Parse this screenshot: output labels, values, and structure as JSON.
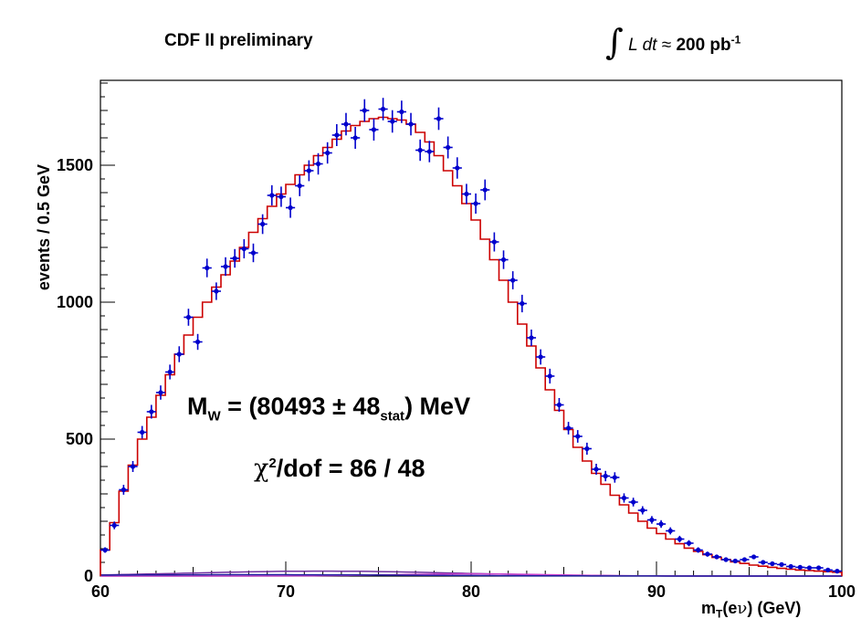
{
  "header": {
    "left": "CDF II preliminary",
    "lumi_integrand": "L dt",
    "lumi_approx": "≈",
    "lumi_value": "200 pb",
    "lumi_exp": "-1"
  },
  "annotations": {
    "mass_prefix": "M",
    "mass_sub": "W",
    "mass_eq": " = (80493 ± 48",
    "mass_stat": "stat",
    "mass_unit": ") MeV",
    "chi_symbol": "χ",
    "chi_exp": "2",
    "chi_rest": "/dof = 86 / 48"
  },
  "axes": {
    "ylabel": "events / 0.5 GeV",
    "xlabel_m": "m",
    "xlabel_sub": "T",
    "xlabel_open": "(e",
    "xlabel_nu": "ν",
    "xlabel_close": ") (GeV)"
  },
  "colors": {
    "data": "#0000cc",
    "fit": "#cc0000",
    "background_1": "#7030a0",
    "background_2": "#cc44cc",
    "background_3": "#2020a0"
  },
  "chart_data": {
    "type": "histogram",
    "xlim": [
      60,
      100
    ],
    "ylim": [
      0,
      1700
    ],
    "x_ticks": [
      60,
      70,
      80,
      90,
      100
    ],
    "y_ticks": [
      0,
      500,
      1000,
      1500
    ],
    "bin_width": 0.5,
    "series": [
      {
        "kind": "data points with error bars",
        "x": [
          60.25,
          60.75,
          61.25,
          61.75,
          62.25,
          62.75,
          63.25,
          63.75,
          64.25,
          64.75,
          65.25,
          65.75,
          66.25,
          66.75,
          67.25,
          67.75,
          68.25,
          68.75,
          69.25,
          69.75,
          70.25,
          70.75,
          71.25,
          71.75,
          72.25,
          72.75,
          73.25,
          73.75,
          74.25,
          74.75,
          75.25,
          75.75,
          76.25,
          76.75,
          77.25,
          77.75,
          78.25,
          78.75,
          79.25,
          79.75,
          80.25,
          80.75,
          81.25,
          81.75,
          82.25,
          82.75,
          83.25,
          83.75,
          84.25,
          84.75,
          85.25,
          85.75,
          86.25,
          86.75,
          87.25,
          87.75,
          88.25,
          88.75,
          89.25,
          89.75,
          90.25,
          90.75,
          91.25,
          91.75,
          92.25,
          92.75,
          93.25,
          93.75,
          94.25,
          94.75,
          95.25,
          95.75,
          96.25,
          96.75,
          97.25,
          97.75,
          98.25,
          98.75,
          99.25,
          99.75
        ],
        "y": [
          95,
          185,
          315,
          400,
          525,
          600,
          670,
          745,
          810,
          945,
          855,
          1125,
          1040,
          1130,
          1160,
          1195,
          1180,
          1285,
          1390,
          1385,
          1345,
          1425,
          1480,
          1505,
          1545,
          1610,
          1650,
          1600,
          1700,
          1630,
          1705,
          1660,
          1695,
          1650,
          1555,
          1550,
          1670,
          1565,
          1490,
          1395,
          1360,
          1410,
          1220,
          1155,
          1080,
          995,
          870,
          800,
          730,
          625,
          540,
          510,
          465,
          390,
          365,
          360,
          285,
          270,
          240,
          205,
          190,
          165,
          135,
          120,
          95,
          80,
          70,
          60,
          55,
          60,
          70,
          50,
          45,
          42,
          35,
          32,
          30,
          30,
          22,
          18
        ],
        "yerr": [
          10,
          14,
          18,
          20,
          23,
          25,
          26,
          27,
          29,
          31,
          29,
          34,
          32,
          34,
          34,
          35,
          34,
          36,
          37,
          37,
          37,
          38,
          38,
          39,
          39,
          40,
          41,
          40,
          41,
          40,
          41,
          41,
          41,
          41,
          39,
          39,
          41,
          40,
          39,
          37,
          37,
          38,
          35,
          34,
          33,
          32,
          30,
          28,
          27,
          25,
          23,
          23,
          22,
          20,
          19,
          19,
          17,
          16,
          15,
          14,
          14,
          13,
          12,
          11,
          10,
          9,
          8,
          8,
          7,
          8,
          8,
          7,
          7,
          6,
          6,
          6,
          5,
          5,
          5,
          4
        ]
      },
      {
        "kind": "fit template (step)",
        "values": [
          95,
          195,
          310,
          405,
          500,
          580,
          660,
          735,
          810,
          880,
          945,
          1000,
          1055,
          1100,
          1150,
          1200,
          1255,
          1305,
          1350,
          1395,
          1430,
          1465,
          1500,
          1535,
          1565,
          1595,
          1625,
          1645,
          1660,
          1670,
          1675,
          1670,
          1665,
          1650,
          1620,
          1585,
          1535,
          1480,
          1425,
          1360,
          1300,
          1230,
          1155,
          1080,
          1000,
          920,
          840,
          760,
          680,
          605,
          535,
          470,
          420,
          375,
          335,
          295,
          260,
          230,
          200,
          175,
          155,
          135,
          118,
          102,
          90,
          78,
          68,
          60,
          52,
          46,
          40,
          36,
          32,
          28,
          25,
          22,
          20,
          18,
          16,
          14
        ]
      },
      {
        "kind": "background (purple)",
        "x_range": [
          60,
          100
        ],
        "level_peak": 18
      },
      {
        "kind": "background (magenta)",
        "x_range": [
          60,
          100
        ],
        "level_peak": 8
      },
      {
        "kind": "background (dark blue)",
        "x_range": [
          60,
          100
        ],
        "level_peak": 5
      }
    ]
  }
}
